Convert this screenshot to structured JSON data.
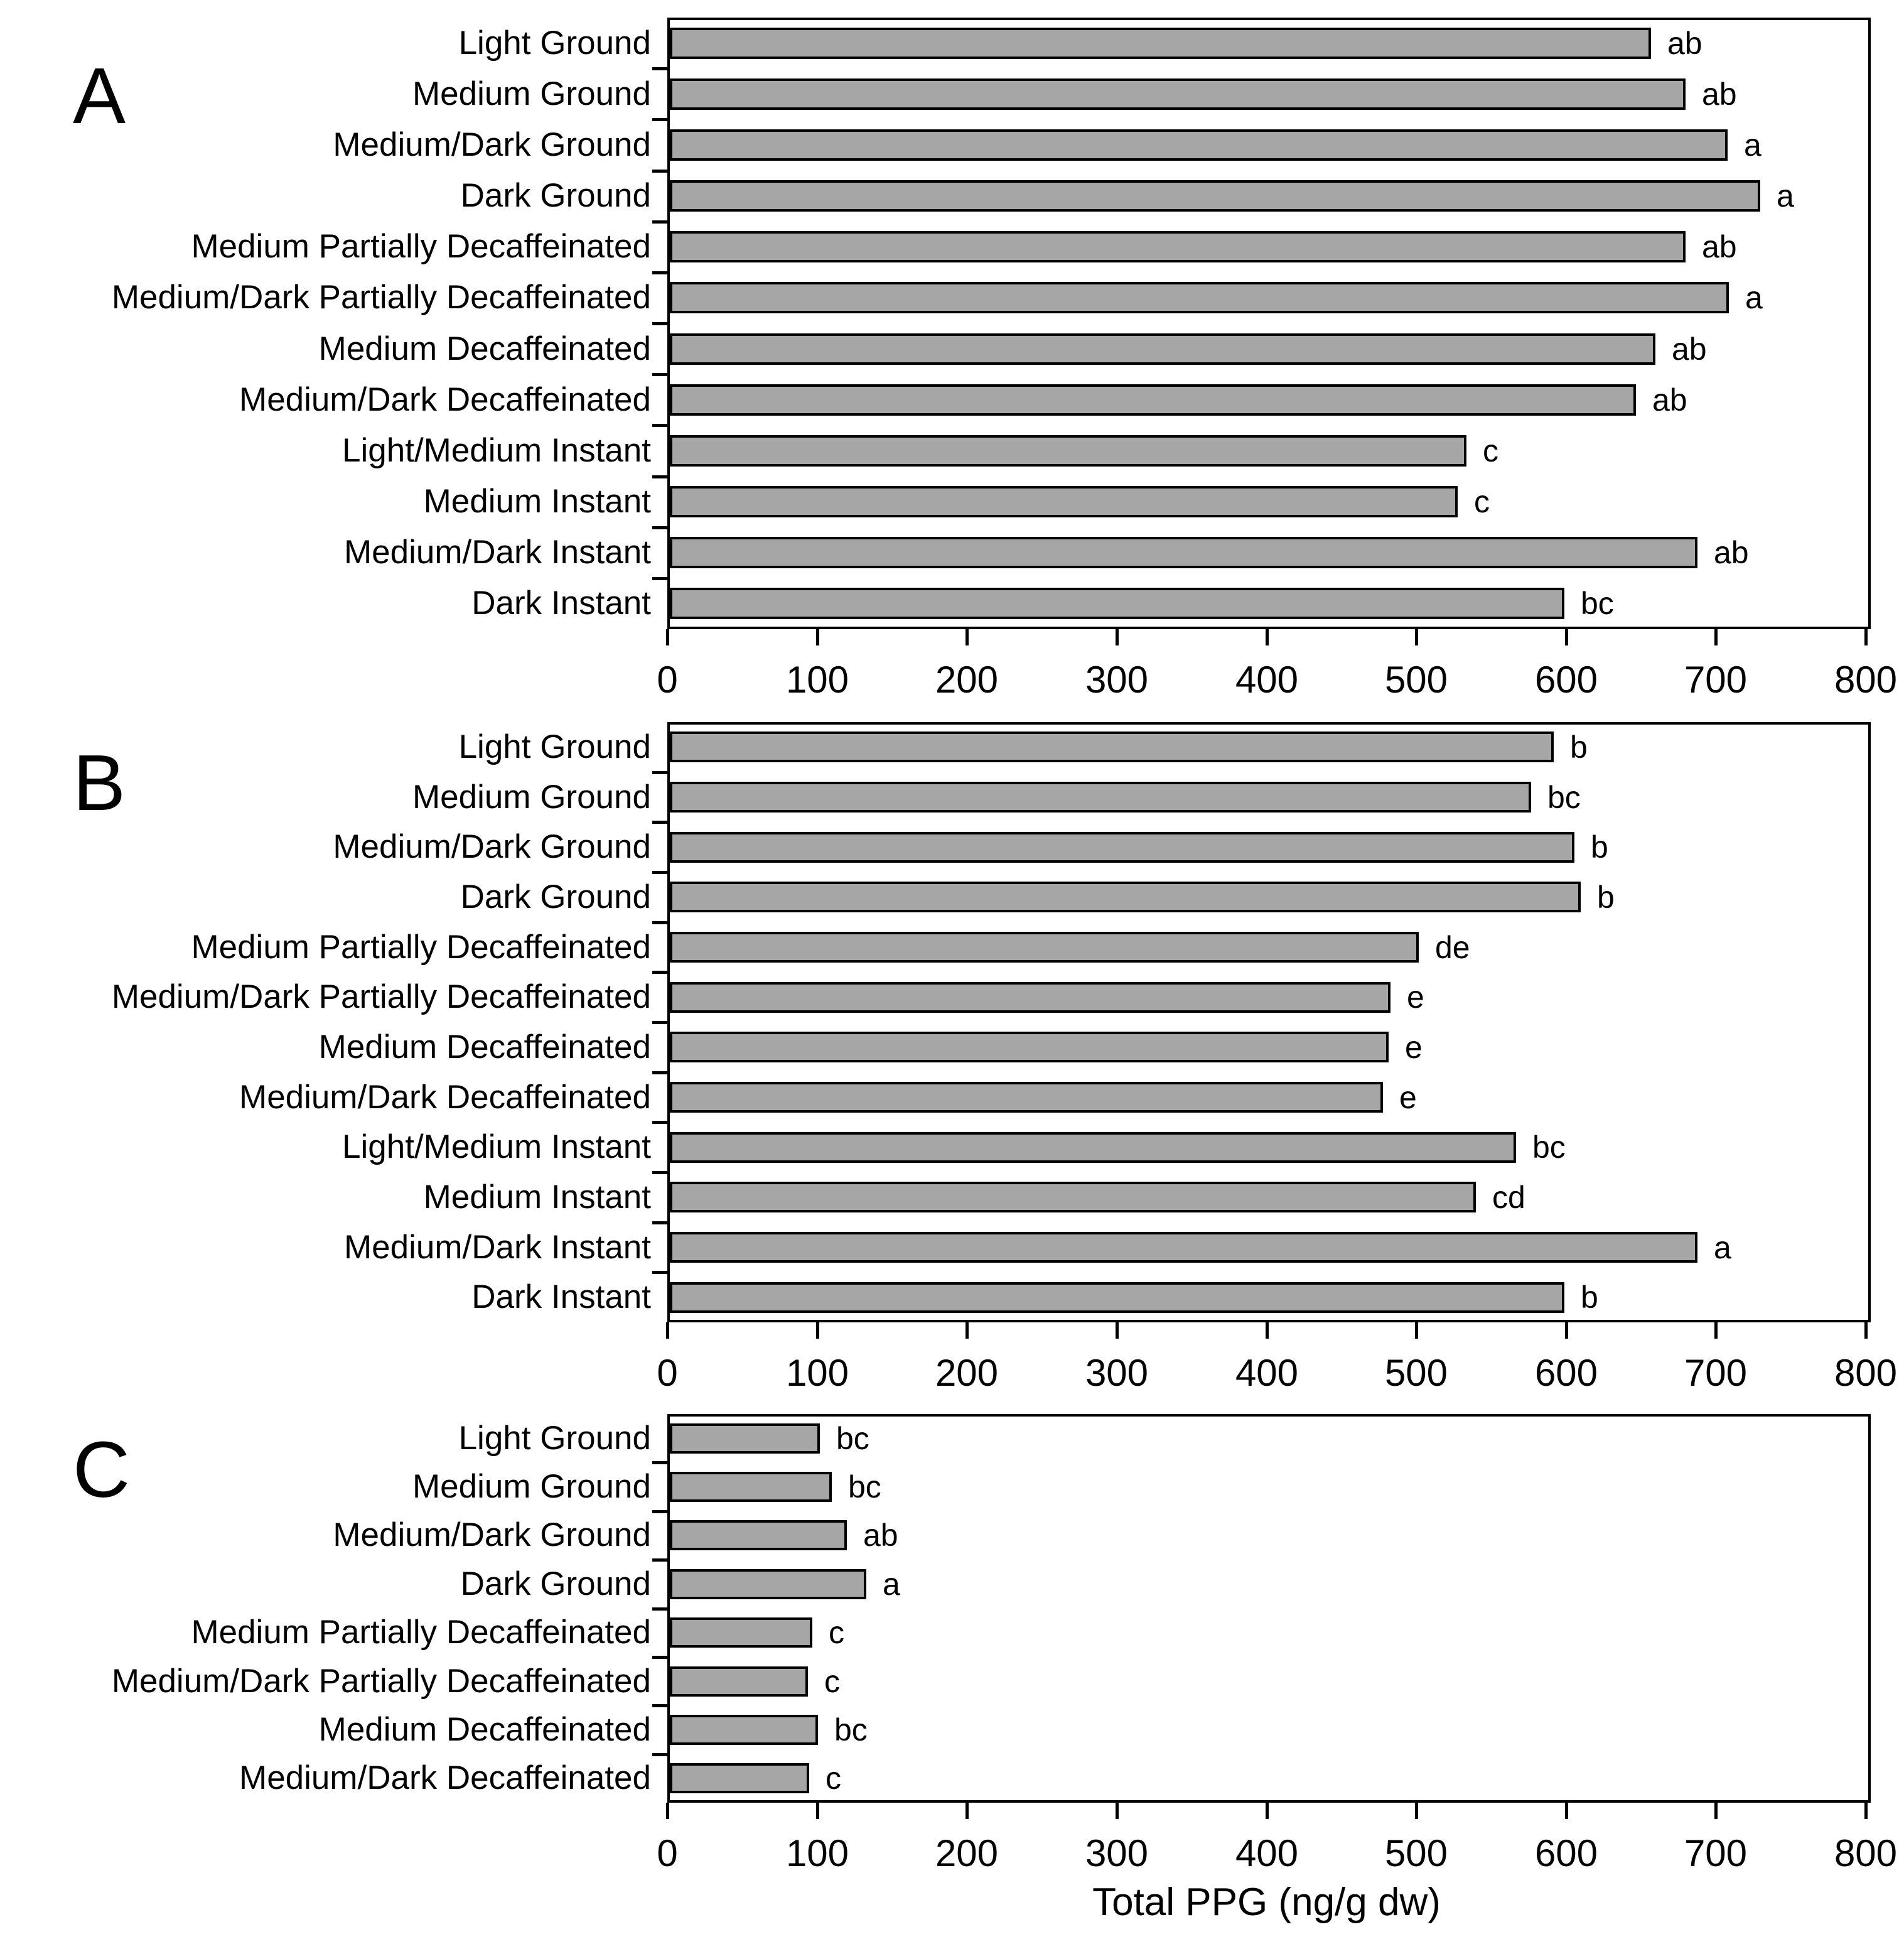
{
  "chart_data": {
    "type": "bar",
    "orientation": "horizontal",
    "x_label": "Total PPG (ng/g dw)",
    "xlim": [
      0,
      800
    ],
    "x_ticks": [
      0,
      100,
      200,
      300,
      400,
      500,
      600,
      700,
      800
    ],
    "grid": false,
    "legend": "none",
    "panels": [
      {
        "panel_label": "A",
        "categories": [
          "Light Ground",
          "Medium Ground",
          "Medium/Dark Ground",
          "Dark Ground",
          "Medium Partially Decaffeinated",
          "Medium/Dark Partially Decaffeinated",
          "Medium Decaffeinated",
          "Medium/Dark Decaffeinated",
          "Light/Medium Instant",
          "Medium Instant",
          "Medium/Dark Instant",
          "Dark Instant"
        ],
        "values": [
          655,
          678,
          706,
          728,
          678,
          707,
          658,
          645,
          532,
          526,
          686,
          597
        ],
        "sig_letters": [
          "ab",
          "ab",
          "a",
          "a",
          "ab",
          "a",
          "ab",
          "ab",
          "c",
          "c",
          "ab",
          "bc"
        ]
      },
      {
        "panel_label": "B",
        "categories": [
          "Light Ground",
          "Medium Ground",
          "Medium/Dark Ground",
          "Dark Ground",
          "Medium Partially Decaffeinated",
          "Medium/Dark Partially Decaffeinated",
          "Medium Decaffeinated",
          "Medium/Dark Decaffeinated",
          "Light/Medium Instant",
          "Medium Instant",
          "Medium/Dark Instant",
          "Dark Instant"
        ],
        "values": [
          590,
          575,
          604,
          608,
          500,
          481,
          480,
          476,
          565,
          538,
          686,
          597
        ],
        "sig_letters": [
          "b",
          "bc",
          "b",
          "b",
          "de",
          "e",
          "e",
          "e",
          "bc",
          "cd",
          "a",
          "b"
        ]
      },
      {
        "panel_label": "C",
        "categories": [
          "Light Ground",
          "Medium Ground",
          "Medium/Dark Ground",
          "Dark Ground",
          "Medium Partially Decaffeinated",
          "Medium/Dark Partially Decaffeinated",
          "Medium Decaffeinated",
          "Medium/Dark Decaffeinated"
        ],
        "values": [
          100,
          108,
          118,
          131,
          95,
          92,
          99,
          93
        ],
        "sig_letters": [
          "bc",
          "bc",
          "ab",
          "a",
          "c",
          "c",
          "bc",
          "c"
        ]
      }
    ],
    "colors": {
      "bar_fill": "#a6a6a6",
      "bar_border": "#000000",
      "axis": "#000000",
      "text": "#000000",
      "background": "#ffffff"
    }
  }
}
